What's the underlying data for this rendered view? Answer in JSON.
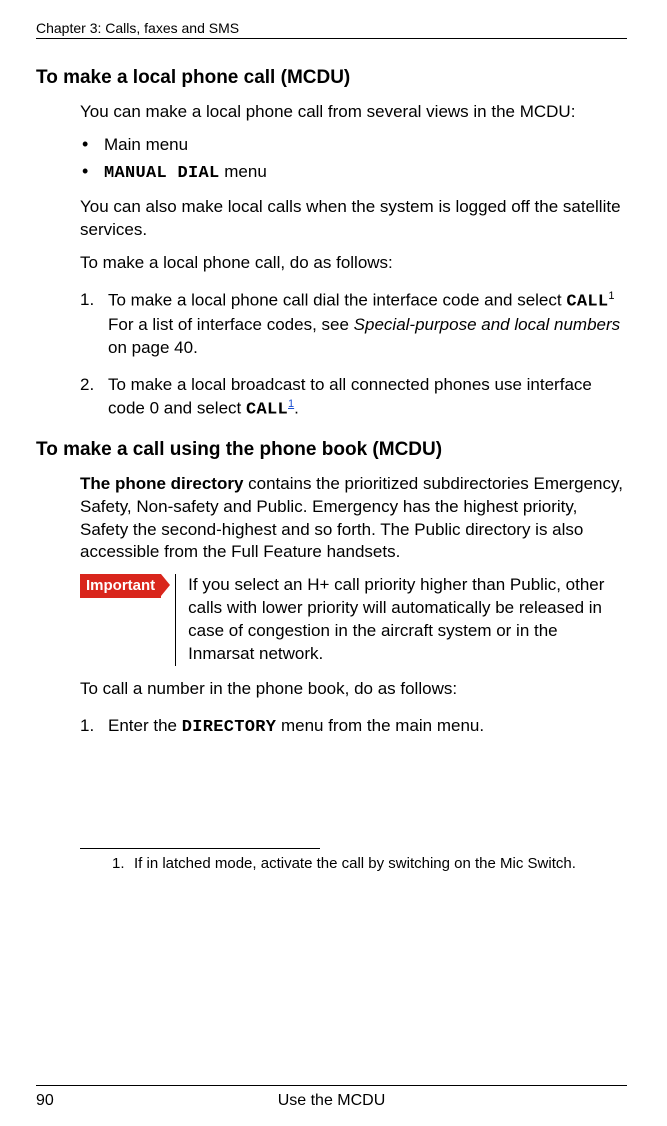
{
  "chapter_header": "Chapter 3:  Calls, faxes and SMS",
  "section1": {
    "title": "To make a local phone call (MCDU)",
    "intro": "You can make a local phone call from several views in the MCDU:",
    "bullets": {
      "b1": "Main menu",
      "b2_pre": "",
      "b2_code": "MANUAL DIAL",
      "b2_post": " menu"
    },
    "para2": "You can also make local calls when the system is logged off the satellite services.",
    "para3": "To make a local phone call, do as follows:",
    "step1": {
      "num": "1.",
      "t1": "To make a local phone call dial the interface code and select ",
      "code": "CALL",
      "sup": "1",
      "line2a": "For a list of interface codes, see ",
      "line2_italic": "Special-purpose and local numbers",
      "line2b": " on page 40."
    },
    "step2": {
      "num": "2.",
      "t1": "To make a local broadcast to all connected phones use interface code 0 and select ",
      "code": "CALL",
      "sup": "1",
      "t2": "."
    }
  },
  "section2": {
    "title": "To make a call using the phone book (MCDU)",
    "para1_bold": "The phone directory",
    "para1_rest": " contains the prioritized subdirectories Emergency, Safety, Non-safety and Public. Emergency has the highest priority, Safety the second-highest and so forth. The Public directory is also accessible from the Full Feature handsets.",
    "important_label": "Important",
    "important_text": "If you select an H+ call priority higher than Public, other calls with lower priority will automatically be released in case of congestion in the aircraft system or in the Inmarsat network.",
    "para2": "To call a number in the phone book, do as follows:",
    "step1": {
      "num": "1.",
      "t1": "Enter the ",
      "code": "DIRECTORY",
      "t2": " menu from the main menu."
    }
  },
  "footnote": {
    "num": "1.",
    "text": "If in latched mode, activate the call by switching on the Mic Switch."
  },
  "footer": {
    "page": "90",
    "center": "Use the MCDU"
  }
}
